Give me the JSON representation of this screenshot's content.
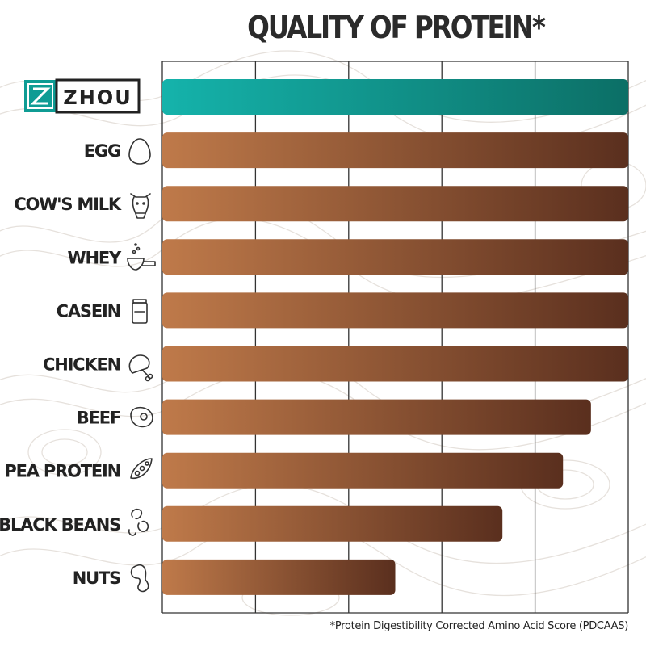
{
  "chart_data": {
    "type": "bar",
    "orientation": "horizontal",
    "title": "QUALITY OF PROTEIN*",
    "categories": [
      "ZHOU",
      "EGG",
      "COW'S MILK",
      "WHEY",
      "CASEIN",
      "CHICKEN",
      "BEEF",
      "PEA PROTEIN",
      "BLACK BEANS",
      "NUTS"
    ],
    "values": [
      1.0,
      1.0,
      1.0,
      1.0,
      1.0,
      1.0,
      0.92,
      0.86,
      0.73,
      0.5
    ],
    "xlim": [
      0,
      1
    ],
    "grid": true,
    "footnote": "*Protein Digestibility Corrected Amino Acid Score (PDCAAS)",
    "icons": [
      "zhou-logo",
      "egg-icon",
      "cow-icon",
      "scoop-icon",
      "jar-icon",
      "drumstick-icon",
      "steak-icon",
      "pea-pod-icon",
      "beans-icon",
      "peanut-icon"
    ],
    "colors": {
      "highlight_start": "#15b3ab",
      "highlight_end": "#0c6f66",
      "bar_start": "#bf7a4a",
      "bar_end": "#5a2f1e",
      "grid": "#333333"
    }
  }
}
